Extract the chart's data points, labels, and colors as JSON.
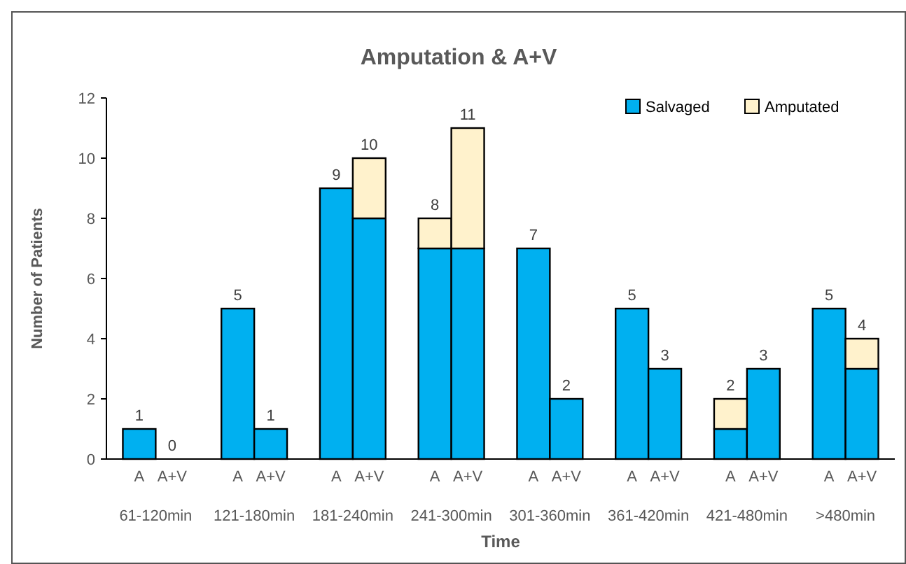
{
  "chart_data": {
    "type": "bar",
    "title": "Amputation & A+V",
    "xlabel": "Time",
    "ylabel": "Number of Patients",
    "categories": [
      "A",
      "A+V",
      "A",
      "A+V",
      "A",
      "A+V",
      "A",
      "A+V",
      "A",
      "A+V",
      "A",
      "A+V",
      "A",
      "A+V",
      "A",
      "A+V"
    ],
    "annotations": [
      "61-120min",
      "121-180min",
      "181-240min",
      "241-300min",
      "301-360min",
      "361-420min",
      "421-480min",
      ">480min"
    ],
    "stacked": true,
    "series": [
      {
        "name": "Salvaged",
        "color": "#00b0f0",
        "values": [
          1,
          0,
          5,
          1,
          9,
          8,
          7,
          7,
          7,
          2,
          5,
          3,
          1,
          3,
          5,
          3
        ]
      },
      {
        "name": "Amputated",
        "color": "#fff2cc",
        "values": [
          0,
          0,
          0,
          0,
          0,
          2,
          1,
          4,
          0,
          0,
          0,
          0,
          1,
          0,
          0,
          1
        ]
      }
    ],
    "totals": [
      "1",
      "0",
      "5",
      "1",
      "9",
      "10",
      "8",
      "11",
      "7",
      "2",
      "5",
      "3",
      "2",
      "3",
      "5",
      "4"
    ],
    "ylim": [
      0,
      12
    ],
    "yticks": [
      0,
      2,
      4,
      6,
      8,
      10,
      12
    ],
    "grid": false,
    "legend": "top right"
  }
}
